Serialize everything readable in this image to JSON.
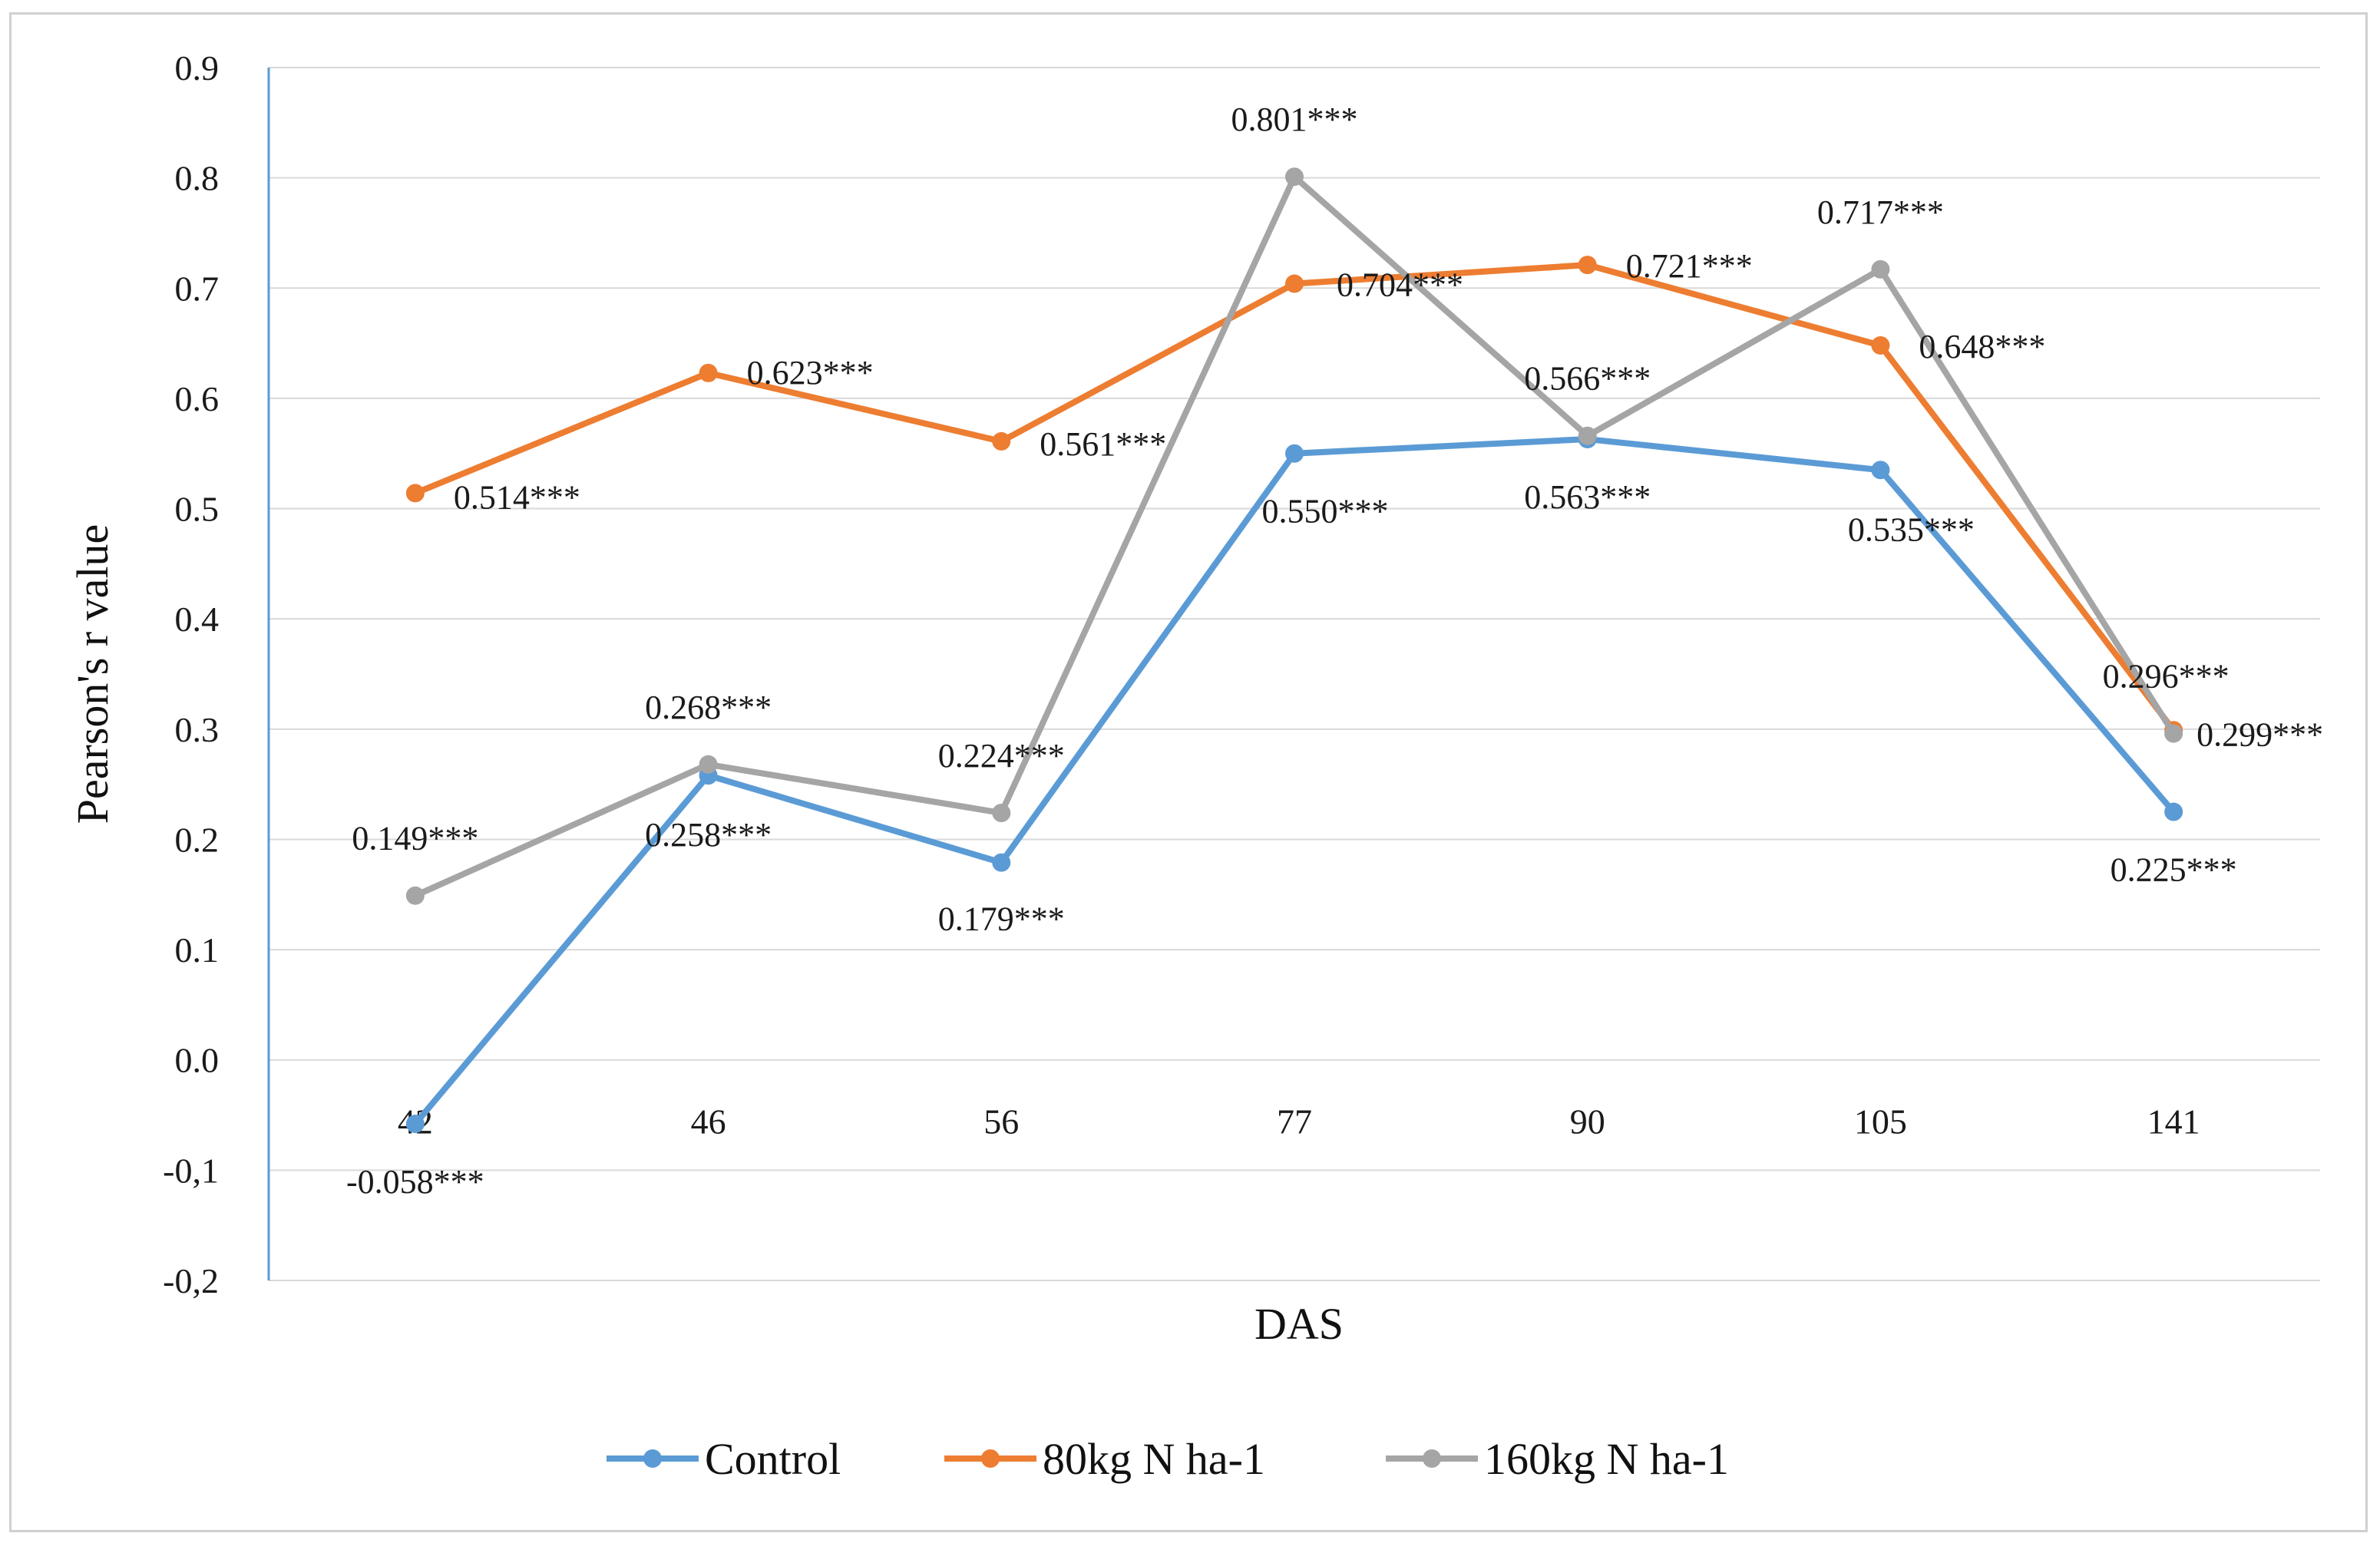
{
  "chart_data": {
    "type": "line",
    "title": "",
    "xlabel": "DAS",
    "ylabel": "Pearson's  r value",
    "categories": [
      "42",
      "46",
      "56",
      "77",
      "90",
      "105",
      "141"
    ],
    "ylim": [
      -0.2,
      0.9
    ],
    "yticks": [
      {
        "value": 0.9,
        "label": "0.9"
      },
      {
        "value": 0.8,
        "label": "0.8"
      },
      {
        "value": 0.7,
        "label": "0.7"
      },
      {
        "value": 0.6,
        "label": "0.6"
      },
      {
        "value": 0.5,
        "label": "0.5"
      },
      {
        "value": 0.4,
        "label": "0.4"
      },
      {
        "value": 0.3,
        "label": "0.3"
      },
      {
        "value": 0.2,
        "label": "0.2"
      },
      {
        "value": 0.1,
        "label": "0.1"
      },
      {
        "value": 0.0,
        "label": "0.0"
      },
      {
        "value": -0.1,
        "label": "-0,1"
      },
      {
        "value": -0.2,
        "label": "-0,2"
      }
    ],
    "grid": true,
    "legend_position": "bottom",
    "series": [
      {
        "name": "Control",
        "color": "#5b9bd5",
        "values": [
          -0.058,
          0.258,
          0.179,
          0.55,
          0.563,
          0.535,
          0.225
        ],
        "labels": [
          "-0.058***",
          "0.258***",
          "0.179***",
          "0.550***",
          "0.563***",
          "0.535***",
          "0.225***"
        ]
      },
      {
        "name": "80kg N ha-1",
        "color": "#ed7d31",
        "values": [
          0.514,
          0.623,
          0.561,
          0.704,
          0.721,
          0.648,
          0.299
        ],
        "labels": [
          "0.514***",
          "0.623***",
          "0.561***",
          "0.704***",
          "0.721***",
          "0.648***",
          "0.299***"
        ]
      },
      {
        "name": "160kg N ha-1",
        "color": "#a5a5a5",
        "values": [
          0.149,
          0.268,
          0.224,
          0.801,
          0.566,
          0.717,
          0.296
        ],
        "labels": [
          "0.149***",
          "0.268***",
          "0.224***",
          "0.801***",
          "0.566***",
          "0.717***",
          "0.296***"
        ]
      }
    ]
  }
}
